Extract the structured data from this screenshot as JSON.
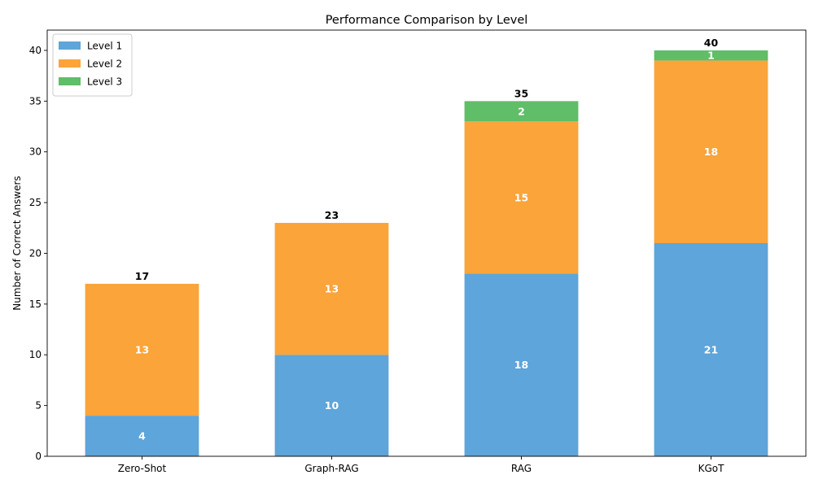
{
  "chart_data": {
    "type": "bar",
    "stacked": true,
    "title": "Performance Comparison by Level",
    "xlabel": "",
    "ylabel": "Number of Correct Answers",
    "categories": [
      "Zero-Shot",
      "Graph-RAG",
      "RAG",
      "KGoT"
    ],
    "series": [
      {
        "name": "Level 1",
        "values": [
          4,
          10,
          18,
          21
        ],
        "color": "#5da5da"
      },
      {
        "name": "Level 2",
        "values": [
          13,
          13,
          15,
          18
        ],
        "color": "#faa43a"
      },
      {
        "name": "Level 3",
        "values": [
          0,
          0,
          2,
          1
        ],
        "color": "#60bd68"
      }
    ],
    "totals": [
      17,
      23,
      35,
      40
    ],
    "ylim": [
      0,
      42
    ],
    "yticks": [
      0,
      5,
      10,
      15,
      20,
      25,
      30,
      35,
      40
    ],
    "grid": false,
    "legend": "top-left"
  }
}
